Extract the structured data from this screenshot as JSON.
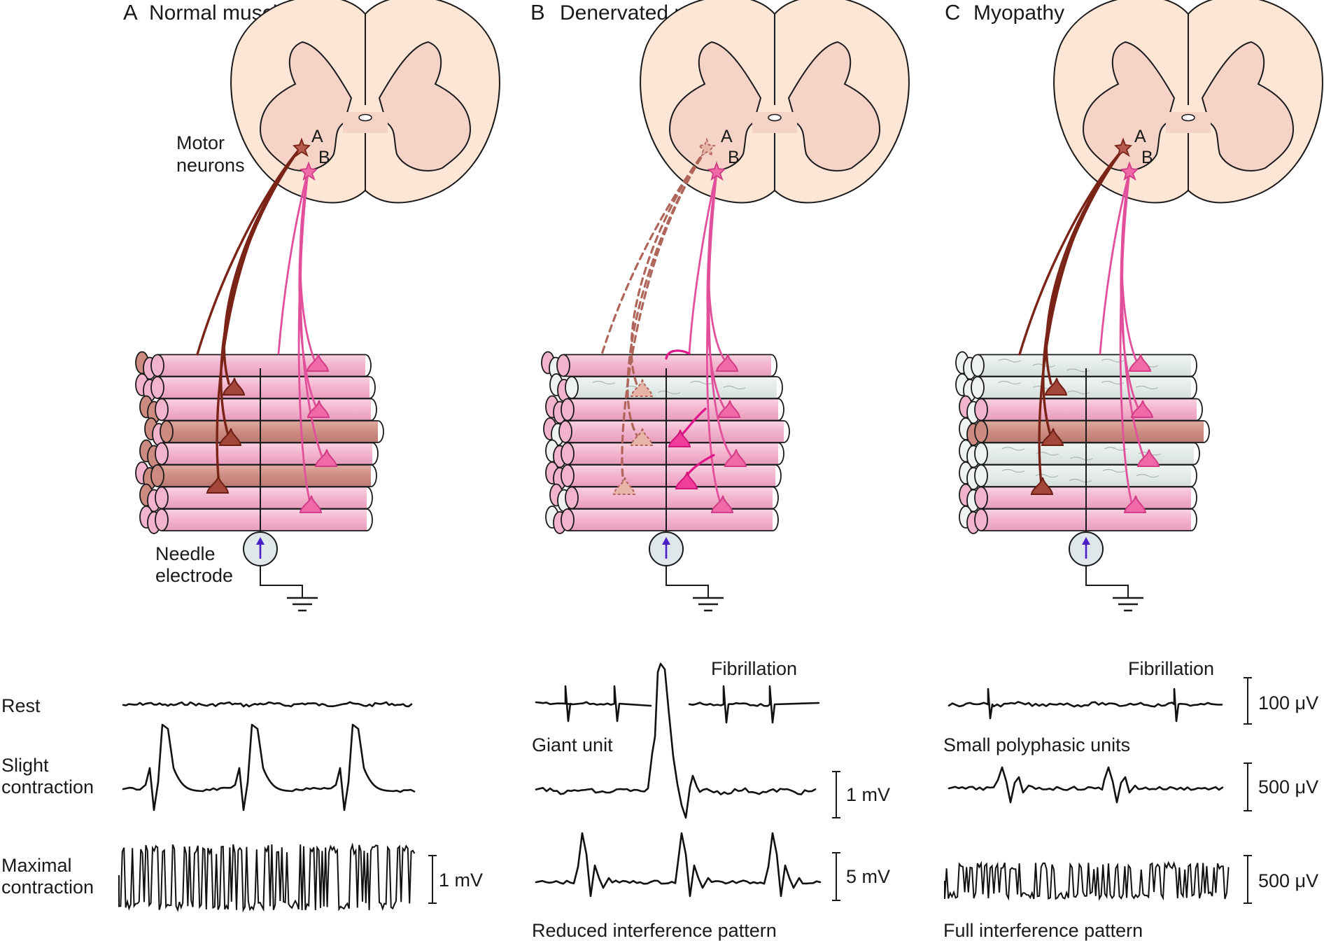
{
  "panels": [
    {
      "letter": "A",
      "title": "Normal muscle"
    },
    {
      "letter": "B",
      "title": "Denervated muscle"
    },
    {
      "letter": "C",
      "title": "Myopathy"
    }
  ],
  "labels": {
    "motor_neurons_1": "Motor",
    "motor_neurons_2": "neurons",
    "needle_electrode_1": "Needle",
    "needle_electrode_2": "electrode",
    "neuron_a": "A",
    "neuron_b": "B"
  },
  "traces": {
    "rest": "Rest",
    "slight_1": "Slight",
    "slight_2": "contraction",
    "maximal_1": "Maximal",
    "maximal_2": "contraction",
    "fibrillation_b": "Fibrillation",
    "fibrillation_c": "Fibrillation",
    "giant_unit": "Giant unit",
    "reduced_interference": "Reduced interference pattern",
    "small_polyphasic": "Small polyphasic units",
    "full_interference": "Full interference pattern"
  },
  "calibrations": {
    "a_maximal": "1 mV",
    "b_giant": "1 mV",
    "b_reduced": "5 mV",
    "c_fibrillation": "100 μV",
    "c_polyphasic": "500 μV",
    "c_full": "500 μV"
  },
  "colors": {
    "normal_fiber": "#f3b6cf",
    "unit_a_fiber": "#cf8f85",
    "degenerated_fiber": "#e4ebe8",
    "unit_a_axon": "#7a2418",
    "unit_b_axon": "#e24f9b",
    "cord_white_matter": "#fde6d6",
    "cord_gray_matter": "#f5d3c7",
    "electrode": "#dfe7ea",
    "electrode_arrow": "#4a1fc6"
  }
}
